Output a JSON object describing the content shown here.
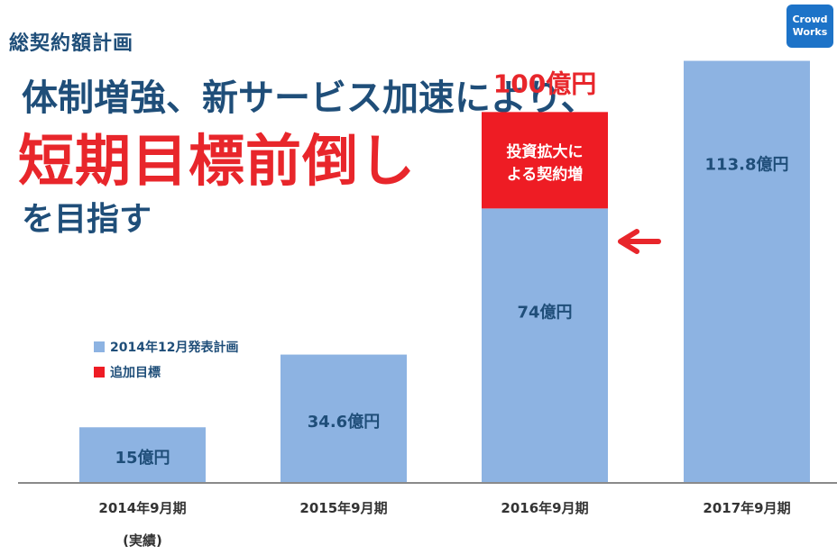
{
  "header": {
    "section_title": "総契約額計画",
    "headline_line1": "体制増強、新サービス加速により、",
    "headline_line2": "短期目標前倒し",
    "headline_line3": "を目指す",
    "logo_line1": "Crowd",
    "logo_line2": "Works"
  },
  "colors": {
    "blue_bar": "#8db3e2",
    "red_bar": "#ee1c24",
    "accent_red": "#e8262b",
    "navy": "#1f4e79",
    "logo_bg": "#1d73c8"
  },
  "annotation": {
    "arrow_icon": "left-arrow-icon"
  },
  "chart_data": {
    "type": "bar",
    "stacked": true,
    "categories": [
      "2014年9月期",
      "2015年9月期",
      "2016年9月期",
      "2017年9月期"
    ],
    "category_sublabels": [
      "(実績)",
      "",
      "",
      ""
    ],
    "series": [
      {
        "name": "2014年12月発表計画",
        "color": "#8db3e2",
        "values": [
          15,
          34.6,
          74,
          113.8
        ]
      },
      {
        "name": "追加目標",
        "color": "#ee1c24",
        "values": [
          0,
          0,
          26,
          0
        ]
      }
    ],
    "data_labels": [
      "15億円",
      "34.6億円",
      "74億円",
      "113.8億円"
    ],
    "total_labels": [
      "",
      "",
      "100億円",
      ""
    ],
    "segment_labels": [
      "",
      "",
      "投資拡大に\nよる契約増",
      ""
    ],
    "ylim": [
      0,
      120
    ],
    "legend": "left",
    "grid": false
  }
}
